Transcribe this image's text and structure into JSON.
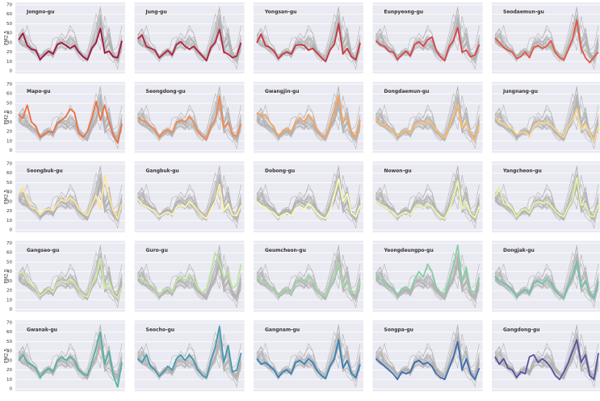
{
  "chart_data": {
    "type": "line",
    "ylabel": "PM2.5",
    "ylim": [
      0,
      70
    ],
    "yticks": [
      0,
      10,
      20,
      30,
      40,
      50,
      60,
      70
    ],
    "grid": true,
    "others_color": "#b3b3b3",
    "panel_color": "#eaeaf2",
    "series": [
      {
        "name": "Jongno-gu",
        "color": "#a3123f",
        "values": [
          33,
          40,
          27,
          23,
          22,
          12,
          17,
          21,
          18,
          28,
          30,
          27,
          24,
          27,
          20,
          15,
          12,
          24,
          30,
          45,
          19,
          21,
          15,
          14,
          32
        ]
      },
      {
        "name": "Jung-gu",
        "color": "#b5203f",
        "values": [
          34,
          38,
          26,
          24,
          22,
          14,
          18,
          22,
          17,
          28,
          31,
          26,
          23,
          26,
          21,
          16,
          11,
          25,
          30,
          44,
          20,
          18,
          14,
          16,
          30
        ]
      },
      {
        "name": "Yongsan-gu",
        "color": "#c9363f",
        "values": [
          30,
          39,
          27,
          25,
          21,
          13,
          18,
          20,
          18,
          27,
          28,
          27,
          22,
          24,
          19,
          14,
          10,
          22,
          28,
          50,
          18,
          24,
          15,
          12,
          30
        ]
      },
      {
        "name": "Eunpyeong-gu",
        "color": "#d9444a",
        "values": [
          32,
          28,
          26,
          21,
          20,
          12,
          17,
          21,
          16,
          28,
          31,
          26,
          33,
          36,
          22,
          15,
          11,
          26,
          32,
          46,
          20,
          22,
          15,
          17,
          28
        ]
      },
      {
        "name": "Seodaemun-gu",
        "color": "#e5553f",
        "values": [
          35,
          30,
          25,
          22,
          20,
          13,
          15,
          20,
          14,
          25,
          27,
          24,
          26,
          32,
          20,
          14,
          12,
          22,
          34,
          54,
          24,
          14,
          9,
          15,
          20
        ]
      },
      {
        "name": "Mapo-gu",
        "color": "#ee7040",
        "values": [
          38,
          34,
          48,
          30,
          26,
          14,
          17,
          20,
          19,
          29,
          32,
          36,
          44,
          40,
          18,
          14,
          20,
          34,
          52,
          32,
          48,
          30,
          16,
          8,
          28
        ]
      },
      {
        "name": "Seongdong-gu",
        "color": "#f4894e",
        "values": [
          35,
          32,
          30,
          26,
          22,
          14,
          20,
          22,
          19,
          30,
          32,
          30,
          36,
          30,
          20,
          15,
          12,
          26,
          32,
          57,
          24,
          30,
          17,
          15,
          28
        ]
      },
      {
        "name": "Gwangjin-gu",
        "color": "#f8a35b",
        "values": [
          40,
          36,
          38,
          30,
          24,
          15,
          20,
          24,
          20,
          30,
          34,
          30,
          38,
          32,
          22,
          16,
          14,
          28,
          40,
          58,
          30,
          35,
          20,
          14,
          32
        ]
      },
      {
        "name": "Dongdaemun-gu",
        "color": "#fbbb6a",
        "values": [
          34,
          28,
          27,
          24,
          21,
          15,
          18,
          22,
          18,
          28,
          30,
          27,
          32,
          28,
          21,
          16,
          13,
          25,
          36,
          49,
          24,
          30,
          18,
          10,
          28
        ]
      },
      {
        "name": "Jungnang-gu",
        "color": "#fdd382",
        "values": [
          36,
          30,
          28,
          25,
          23,
          17,
          19,
          20,
          15,
          26,
          30,
          28,
          30,
          27,
          22,
          17,
          14,
          26,
          32,
          44,
          22,
          28,
          18,
          10,
          26
        ]
      },
      {
        "name": "Seongbuk-gu",
        "color": "#fde696",
        "values": [
          38,
          45,
          32,
          24,
          22,
          16,
          21,
          22,
          20,
          28,
          32,
          30,
          34,
          30,
          22,
          18,
          15,
          26,
          36,
          22,
          58,
          36,
          20,
          12,
          28
        ]
      },
      {
        "name": "Gangbuk-gu",
        "color": "#fef3a8",
        "values": [
          33,
          27,
          25,
          22,
          20,
          14,
          17,
          19,
          16,
          24,
          26,
          24,
          30,
          26,
          20,
          15,
          12,
          22,
          30,
          48,
          20,
          28,
          16,
          15,
          26
        ]
      },
      {
        "name": "Dobong-gu",
        "color": "#f9fbb0",
        "values": [
          30,
          26,
          24,
          20,
          18,
          13,
          16,
          18,
          15,
          23,
          25,
          22,
          28,
          24,
          18,
          14,
          12,
          21,
          36,
          54,
          30,
          38,
          18,
          14,
          26
        ]
      },
      {
        "name": "Nowon-gu",
        "color": "#eff8a6",
        "values": [
          31,
          27,
          25,
          21,
          19,
          14,
          17,
          19,
          16,
          24,
          26,
          23,
          28,
          25,
          19,
          14,
          12,
          22,
          34,
          52,
          22,
          30,
          17,
          13,
          25
        ]
      },
      {
        "name": "Yangcheon-gu",
        "color": "#e3f49d",
        "values": [
          36,
          44,
          28,
          26,
          22,
          14,
          20,
          22,
          18,
          28,
          30,
          28,
          30,
          26,
          20,
          16,
          14,
          24,
          32,
          55,
          26,
          28,
          15,
          14,
          27
        ]
      },
      {
        "name": "Gangseo-gu",
        "color": "#d0ec9c",
        "values": [
          38,
          40,
          30,
          26,
          22,
          14,
          18,
          22,
          18,
          28,
          30,
          28,
          32,
          28,
          20,
          15,
          13,
          26,
          34,
          54,
          22,
          30,
          16,
          12,
          24
        ]
      },
      {
        "name": "Guro-gu",
        "color": "#bbe3a0",
        "values": [
          34,
          32,
          28,
          26,
          22,
          15,
          20,
          22,
          18,
          30,
          34,
          30,
          36,
          32,
          22,
          18,
          22,
          40,
          60,
          50,
          34,
          40,
          22,
          26,
          48
        ]
      },
      {
        "name": "Geumcheon-gu",
        "color": "#a1d9a4",
        "values": [
          34,
          30,
          28,
          25,
          21,
          14,
          19,
          21,
          17,
          28,
          32,
          28,
          36,
          30,
          21,
          16,
          14,
          26,
          34,
          50,
          24,
          32,
          18,
          16,
          30
        ]
      },
      {
        "name": "Yeongdeungpo-gu",
        "color": "#87cfa4",
        "values": [
          38,
          32,
          30,
          26,
          22,
          15,
          22,
          24,
          20,
          32,
          40,
          34,
          48,
          40,
          24,
          18,
          16,
          30,
          46,
          68,
          30,
          44,
          20,
          18,
          34
        ]
      },
      {
        "name": "Dongjak-gu",
        "color": "#6dc4a6",
        "values": [
          35,
          30,
          28,
          25,
          20,
          13,
          18,
          21,
          17,
          28,
          30,
          27,
          32,
          28,
          20,
          15,
          12,
          25,
          36,
          50,
          24,
          30,
          16,
          12,
          30
        ]
      },
      {
        "name": "Gwanak-gu",
        "color": "#55b1a8",
        "values": [
          30,
          36,
          28,
          26,
          22,
          12,
          18,
          22,
          18,
          30,
          34,
          30,
          34,
          30,
          20,
          16,
          14,
          28,
          44,
          60,
          26,
          40,
          14,
          2,
          28
        ]
      },
      {
        "name": "Seocho-gu",
        "color": "#419aaf",
        "values": [
          32,
          28,
          36,
          24,
          20,
          13,
          18,
          24,
          20,
          32,
          36,
          30,
          36,
          30,
          20,
          14,
          12,
          30,
          44,
          66,
          28,
          46,
          18,
          20,
          38
        ]
      },
      {
        "name": "Gangnam-gu",
        "color": "#3683ba",
        "values": [
          32,
          26,
          28,
          24,
          20,
          12,
          18,
          20,
          16,
          28,
          30,
          26,
          32,
          28,
          19,
          14,
          11,
          24,
          32,
          52,
          22,
          30,
          16,
          12,
          26
        ]
      },
      {
        "name": "Songpa-gu",
        "color": "#3e6cb0",
        "values": [
          32,
          28,
          24,
          20,
          16,
          10,
          18,
          16,
          18,
          28,
          30,
          26,
          28,
          24,
          16,
          12,
          10,
          22,
          34,
          50,
          20,
          32,
          16,
          10,
          22
        ]
      },
      {
        "name": "Gangdong-gu",
        "color": "#5354a3",
        "values": [
          34,
          26,
          32,
          22,
          20,
          12,
          18,
          16,
          34,
          36,
          28,
          32,
          28,
          22,
          14,
          10,
          18,
          28,
          40,
          52,
          28,
          36,
          14,
          10,
          38
        ]
      }
    ]
  }
}
